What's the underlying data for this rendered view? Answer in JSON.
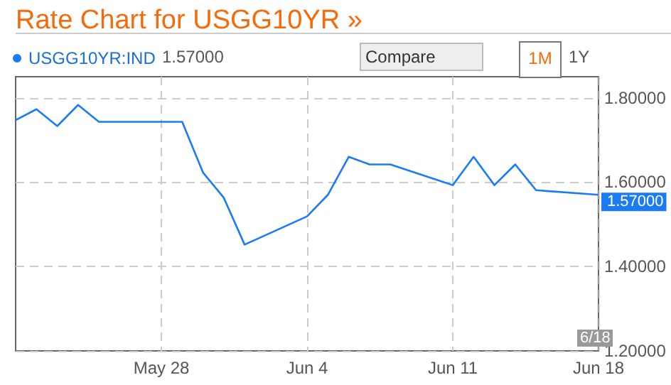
{
  "chart_data": {
    "type": "line",
    "title": "Rate Chart for USGG10YR »",
    "x": [
      "--05-21",
      "--05-22",
      "--05-23",
      "--05-24",
      "--05-25",
      "--05-29",
      "--05-30",
      "--05-31",
      "--06-01",
      "--06-04",
      "--06-05",
      "--06-06",
      "--06-07",
      "--06-08",
      "--06-11",
      "--06-12",
      "--06-13",
      "--06-14",
      "--06-15",
      "--06-18"
    ],
    "series": [
      {
        "name": "USGG10YR:IND",
        "color": "#1a7cf0",
        "values": [
          1.747,
          1.773,
          1.733,
          1.783,
          1.743,
          1.743,
          1.623,
          1.563,
          1.452,
          1.519,
          1.57,
          1.66,
          1.642,
          1.642,
          1.593,
          1.66,
          1.593,
          1.642,
          1.581,
          1.57
        ]
      }
    ],
    "xlim": [
      "--05-21",
      "--06-18"
    ],
    "xticks": [
      {
        "value": "--05-28",
        "label": "May 28"
      },
      {
        "value": "--06-04",
        "label": "Jun 4"
      },
      {
        "value": "--06-11",
        "label": "Jun 11"
      },
      {
        "value": "--06-18",
        "label": "Jun 18"
      }
    ],
    "ylim": [
      1.2,
      1.85
    ],
    "yticks": [
      {
        "value": 1.2,
        "label": "1.20000"
      },
      {
        "value": 1.4,
        "label": "1.40000"
      },
      {
        "value": 1.6,
        "label": "1.60000"
      },
      {
        "value": 1.8,
        "label": "1.80000"
      }
    ],
    "annotations": [
      "1.57000",
      "Compare",
      "1M",
      "1Y",
      "6/18",
      {
        "text": "1.57000",
        "x": "--06-18",
        "y": 1.57
      }
    ],
    "grid": true,
    "legend": "top left",
    "marker": "none",
    "line_style": "solid"
  }
}
